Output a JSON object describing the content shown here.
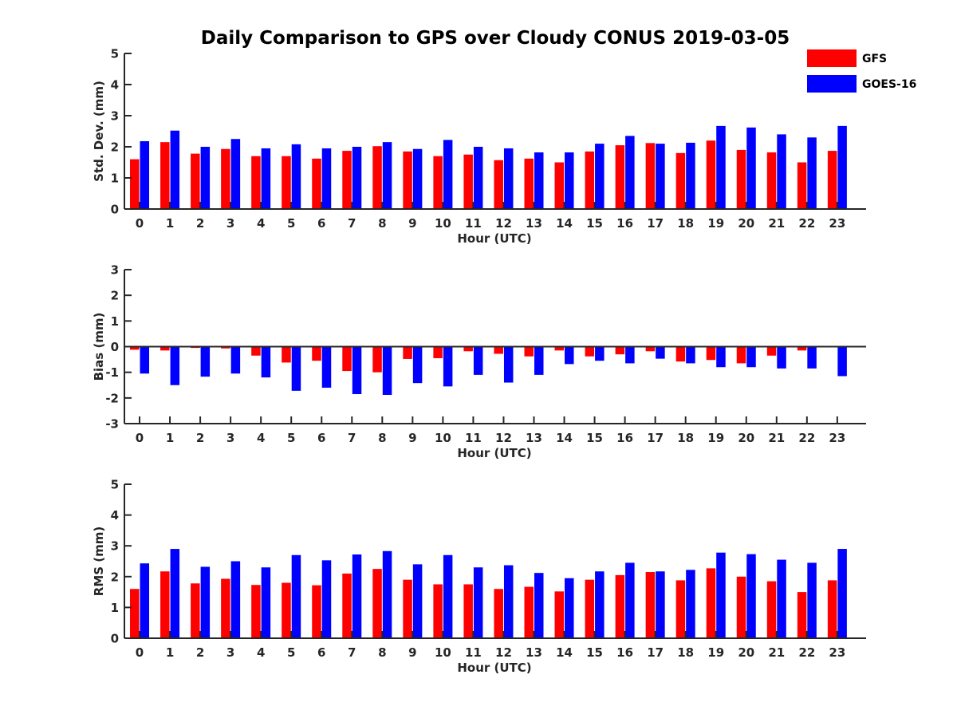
{
  "chart_data": [
    {
      "type": "bar",
      "title": "Daily Comparison to GPS over Cloudy CONUS 2019-03-05",
      "xlabel": "Hour (UTC)",
      "ylabel": "Std. Dev. (mm)",
      "ylim": [
        0,
        5
      ],
      "yticks": [
        0,
        1,
        2,
        3,
        4,
        5
      ],
      "categories": [
        "0",
        "1",
        "2",
        "3",
        "4",
        "5",
        "6",
        "7",
        "8",
        "9",
        "10",
        "11",
        "12",
        "13",
        "14",
        "15",
        "16",
        "17",
        "18",
        "19",
        "20",
        "21",
        "22",
        "23"
      ],
      "legend_position": "top-right",
      "series": [
        {
          "name": "GFS",
          "color": "#ff0000",
          "values": [
            1.6,
            2.15,
            1.78,
            1.93,
            1.7,
            1.7,
            1.62,
            1.87,
            2.02,
            1.85,
            1.7,
            1.75,
            1.57,
            1.62,
            1.5,
            1.85,
            2.05,
            2.12,
            1.8,
            2.2,
            1.9,
            1.82,
            1.5,
            1.87
          ]
        },
        {
          "name": "GOES-16",
          "color": "#0000ff",
          "values": [
            2.18,
            2.52,
            2.0,
            2.25,
            1.95,
            2.08,
            1.95,
            2.0,
            2.15,
            1.93,
            2.22,
            2.0,
            1.95,
            1.82,
            1.82,
            2.1,
            2.35,
            2.1,
            2.13,
            2.67,
            2.62,
            2.4,
            2.3,
            2.67
          ]
        }
      ]
    },
    {
      "type": "bar",
      "xlabel": "Hour (UTC)",
      "ylabel": "Bias (mm)",
      "ylim": [
        -3,
        3
      ],
      "yticks": [
        -3,
        -2,
        -1,
        0,
        1,
        2,
        3
      ],
      "categories": [
        "0",
        "1",
        "2",
        "3",
        "4",
        "5",
        "6",
        "7",
        "8",
        "9",
        "10",
        "11",
        "12",
        "13",
        "14",
        "15",
        "16",
        "17",
        "18",
        "19",
        "20",
        "21",
        "22",
        "23"
      ],
      "series": [
        {
          "color": "#ff0000",
          "values": [
            -0.12,
            -0.15,
            -0.05,
            -0.07,
            -0.35,
            -0.62,
            -0.55,
            -0.95,
            -1.0,
            -0.48,
            -0.45,
            -0.18,
            -0.28,
            -0.38,
            -0.15,
            -0.38,
            -0.3,
            -0.18,
            -0.58,
            -0.52,
            -0.65,
            -0.35,
            -0.15,
            0.02
          ]
        },
        {
          "color": "#0000ff",
          "values": [
            -1.05,
            -1.5,
            -1.17,
            -1.05,
            -1.2,
            -1.72,
            -1.6,
            -1.85,
            -1.88,
            -1.42,
            -1.55,
            -1.1,
            -1.4,
            -1.1,
            -0.68,
            -0.55,
            -0.65,
            -0.47,
            -0.65,
            -0.8,
            -0.8,
            -0.85,
            -0.85,
            -1.15
          ]
        }
      ]
    },
    {
      "type": "bar",
      "xlabel": "Hour (UTC)",
      "ylabel": "RMS (mm)",
      "ylim": [
        0,
        5
      ],
      "yticks": [
        0,
        1,
        2,
        3,
        4,
        5
      ],
      "categories": [
        "0",
        "1",
        "2",
        "3",
        "4",
        "5",
        "6",
        "7",
        "8",
        "9",
        "10",
        "11",
        "12",
        "13",
        "14",
        "15",
        "16",
        "17",
        "18",
        "19",
        "20",
        "21",
        "22",
        "23"
      ],
      "series": [
        {
          "color": "#ff0000",
          "values": [
            1.6,
            2.17,
            1.78,
            1.93,
            1.73,
            1.8,
            1.72,
            2.1,
            2.25,
            1.9,
            1.75,
            1.75,
            1.6,
            1.67,
            1.52,
            1.9,
            2.05,
            2.15,
            1.88,
            2.27,
            2.0,
            1.85,
            1.5,
            1.88
          ]
        },
        {
          "color": "#0000ff",
          "values": [
            2.43,
            2.9,
            2.32,
            2.5,
            2.3,
            2.7,
            2.53,
            2.72,
            2.83,
            2.4,
            2.7,
            2.3,
            2.37,
            2.12,
            1.95,
            2.17,
            2.45,
            2.17,
            2.22,
            2.78,
            2.73,
            2.55,
            2.45,
            2.9
          ]
        }
      ]
    }
  ]
}
